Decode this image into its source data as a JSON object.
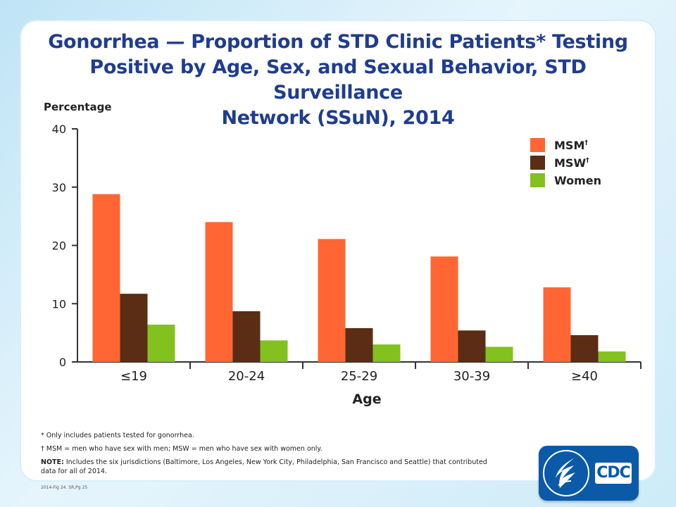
{
  "title_line1": "Gonorrhea — Proportion of STD Clinic Patients* Testing",
  "title_line2": "Positive by Age, Sex, and Sexual Behavior, STD Surveillance",
  "title_line3": "Network (SSuN), 2014",
  "footnotes": {
    "asterisk": "* Only includes patients tested for gonorrhea.",
    "dagger": "† MSM = men who have sex with men; MSW = men who have sex with women only.",
    "note_label": "NOTE:",
    "note_line1": "Includes the six jurisdictions (Baltimore, Los Angeles, New York City, Philadelphia, San Francisco and Seattle) that contributed",
    "note_line2": "data for all of 2014."
  },
  "figure_id": "2014-Fig 24. SR,Pg 25",
  "logo": {
    "text": "CDC",
    "icon": "hhs-eagle-seal-icon"
  },
  "chart_data": {
    "type": "bar",
    "title": "",
    "ylabel": "Percentage",
    "xlabel": "Age",
    "ylim": [
      0,
      40
    ],
    "yticks": [
      0,
      10,
      20,
      30,
      40
    ],
    "categories": [
      "≤19",
      "20-24",
      "25-29",
      "30-39",
      "≥40"
    ],
    "series": [
      {
        "name": "MSM",
        "marker": "†",
        "color": "#ff6633",
        "values": [
          28.8,
          24.0,
          21.1,
          18.1,
          12.8
        ]
      },
      {
        "name": "MSW",
        "marker": "†",
        "color": "#5a2d14",
        "values": [
          11.7,
          8.7,
          5.8,
          5.4,
          4.6
        ]
      },
      {
        "name": "Women",
        "marker": "",
        "color": "#83c11f",
        "values": [
          6.4,
          3.7,
          3.0,
          2.6,
          1.8
        ]
      }
    ],
    "legend": "top-right",
    "grid": false
  }
}
